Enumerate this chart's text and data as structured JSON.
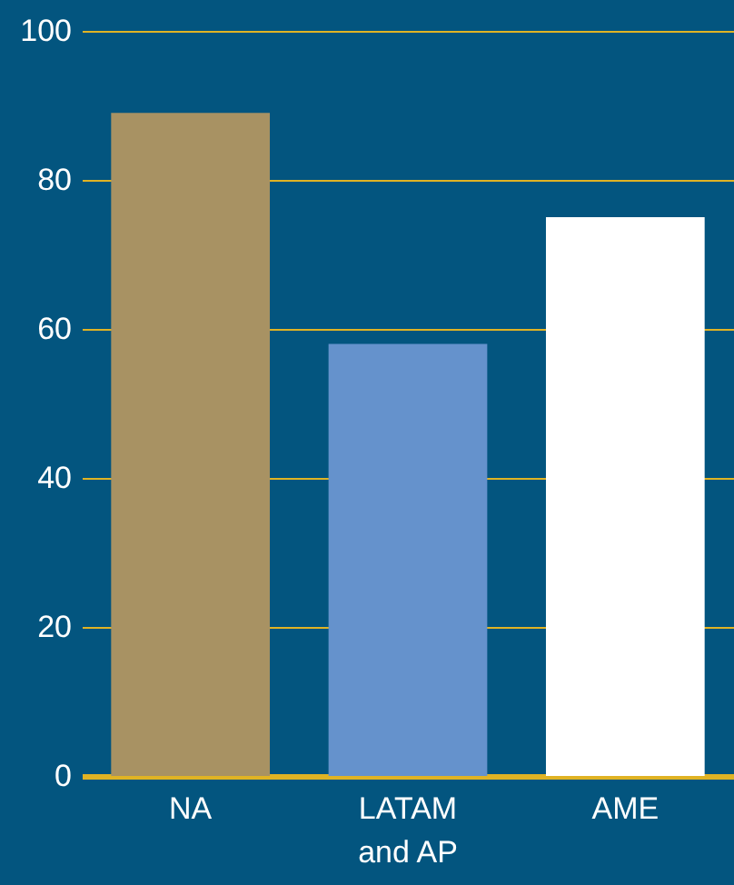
{
  "chart_data": {
    "type": "bar",
    "categories": [
      "NA",
      "LATAM and AP",
      "AME"
    ],
    "values": [
      89,
      58,
      75
    ],
    "colors": [
      "#a89263",
      "#6592cc",
      "#ffffff"
    ],
    "ylim": [
      0,
      100
    ],
    "yticks": [
      0,
      20,
      40,
      60,
      80,
      100
    ],
    "grid": "y"
  }
}
